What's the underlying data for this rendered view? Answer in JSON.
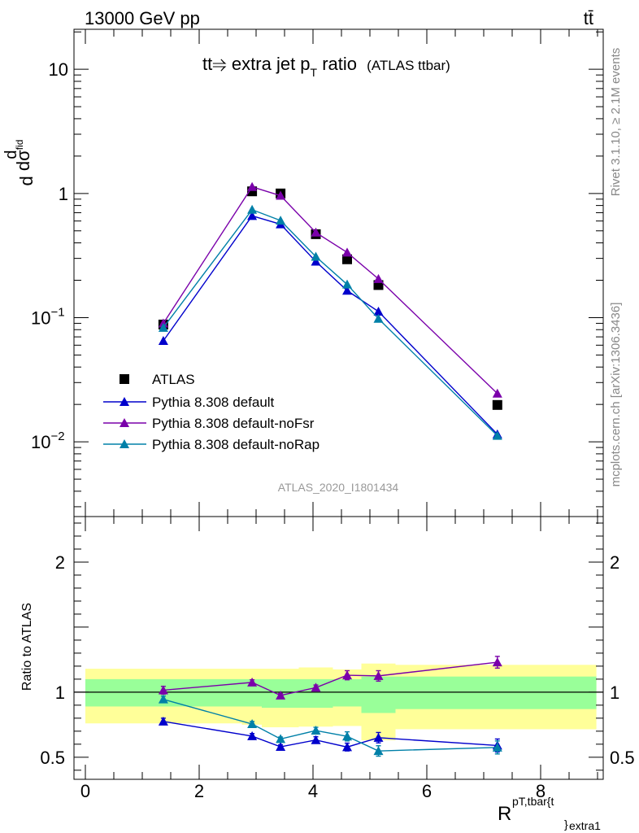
{
  "header": {
    "energy_label": "13000 GeV pp",
    "process_label": "tt̄"
  },
  "plot_title": {
    "main": "tt⥤ extra jet p",
    "main_sub": "T",
    "main_tail": " ratio",
    "paren": "(ATLAS ttbar)"
  },
  "side_labels": {
    "rivet": "Rivet 3.1.10, ≥ 2.1M events",
    "mcplots": "mcplots.cern.ch [arXiv:1306.3436]"
  },
  "analysis_id": "ATLAS_2020_I1801434",
  "colors": {
    "data": "#000000",
    "default": "#0000cc",
    "noFsr": "#7a00aa",
    "noRap": "#0080a8",
    "band_yellow": "#ffff99",
    "band_green": "#99ff99"
  },
  "chart_data": [
    {
      "type": "scatter",
      "yscale": "log",
      "ylabel": "d dσ^fid / dR^{pT,tbar{t}}_{extra1} [pb]",
      "xlim": [
        -0.2,
        9.1
      ],
      "ylim": [
        0.0025,
        21
      ],
      "yticks": [
        {
          "value": 0.01,
          "label": "10",
          "exp": "−2"
        },
        {
          "value": 0.1,
          "label": "10",
          "exp": "−1"
        },
        {
          "value": 1,
          "label": "1",
          "exp": ""
        },
        {
          "value": 10,
          "label": "10",
          "exp": ""
        }
      ],
      "legend_position": "lower-left",
      "x": [
        1.37,
        2.93,
        3.43,
        4.05,
        4.6,
        5.15,
        7.24
      ],
      "series": [
        {
          "name": "ATLAS",
          "key": "data",
          "marker": "square",
          "values": [
            0.088,
            1.04,
            1.0,
            0.47,
            0.295,
            0.183,
            0.0198
          ]
        },
        {
          "name": "Pythia 8.308 default",
          "key": "default",
          "marker": "triangle",
          "values": [
            0.065,
            0.66,
            0.565,
            0.283,
            0.165,
            0.112,
            0.0115
          ]
        },
        {
          "name": "Pythia 8.308 default-noFsr",
          "key": "noFsr",
          "marker": "triangle",
          "values": [
            0.09,
            1.13,
            0.96,
            0.485,
            0.335,
            0.205,
            0.0245
          ]
        },
        {
          "name": "Pythia 8.308 default-noRap",
          "key": "noRap",
          "marker": "triangle",
          "values": [
            0.083,
            0.74,
            0.605,
            0.31,
            0.185,
            0.098,
            0.0112
          ]
        }
      ]
    },
    {
      "type": "line",
      "ylabel": "Ratio to ATLAS",
      "xlabel": "R^{pT,tbar{t}}_{extra1}",
      "xlim": [
        -0.2,
        9.1
      ],
      "ylim": [
        0.33,
        2.35
      ],
      "xticks": [
        0,
        2,
        4,
        6,
        8
      ],
      "yticks": [
        0.5,
        1,
        2
      ],
      "bands": [
        {
          "x0": 0.0,
          "x1": 2.75,
          "yellow": [
            0.76,
            1.18
          ],
          "green": [
            0.89,
            1.1
          ]
        },
        {
          "x0": 2.75,
          "x1": 3.1,
          "yellow": [
            0.75,
            1.18
          ],
          "green": [
            0.89,
            1.1
          ]
        },
        {
          "x0": 3.1,
          "x1": 3.75,
          "yellow": [
            0.73,
            1.18
          ],
          "green": [
            0.88,
            1.1
          ]
        },
        {
          "x0": 3.75,
          "x1": 4.35,
          "yellow": [
            0.735,
            1.19
          ],
          "green": [
            0.88,
            1.1
          ]
        },
        {
          "x0": 4.35,
          "x1": 4.85,
          "yellow": [
            0.74,
            1.175
          ],
          "green": [
            0.89,
            1.1
          ]
        },
        {
          "x0": 4.85,
          "x1": 5.45,
          "yellow": [
            0.63,
            1.22
          ],
          "green": [
            0.84,
            1.12
          ]
        },
        {
          "x0": 5.45,
          "x1": 8.98,
          "yellow": [
            0.715,
            1.21
          ],
          "green": [
            0.87,
            1.12
          ]
        }
      ],
      "x": [
        1.37,
        2.93,
        3.43,
        4.05,
        4.6,
        5.15,
        7.24
      ],
      "series": [
        {
          "name": "Pythia 8.308 default",
          "key": "default",
          "values": [
            0.775,
            0.662,
            0.58,
            0.632,
            0.578,
            0.65,
            0.59
          ],
          "errors": [
            0.025,
            0.02,
            0.015,
            0.025,
            0.03,
            0.04,
            0.05
          ]
        },
        {
          "name": "Pythia 8.308 default-noFsr",
          "key": "noFsr",
          "values": [
            1.015,
            1.075,
            0.975,
            1.035,
            1.13,
            1.125,
            1.23
          ],
          "errors": [
            0.03,
            0.02,
            0.015,
            0.02,
            0.035,
            0.04,
            0.045
          ]
        },
        {
          "name": "Pythia 8.308 default-noRap",
          "key": "noRap",
          "values": [
            0.945,
            0.755,
            0.64,
            0.705,
            0.66,
            0.548,
            0.575
          ],
          "errors": [
            0.025,
            0.02,
            0.015,
            0.025,
            0.035,
            0.04,
            0.05
          ]
        }
      ]
    }
  ]
}
